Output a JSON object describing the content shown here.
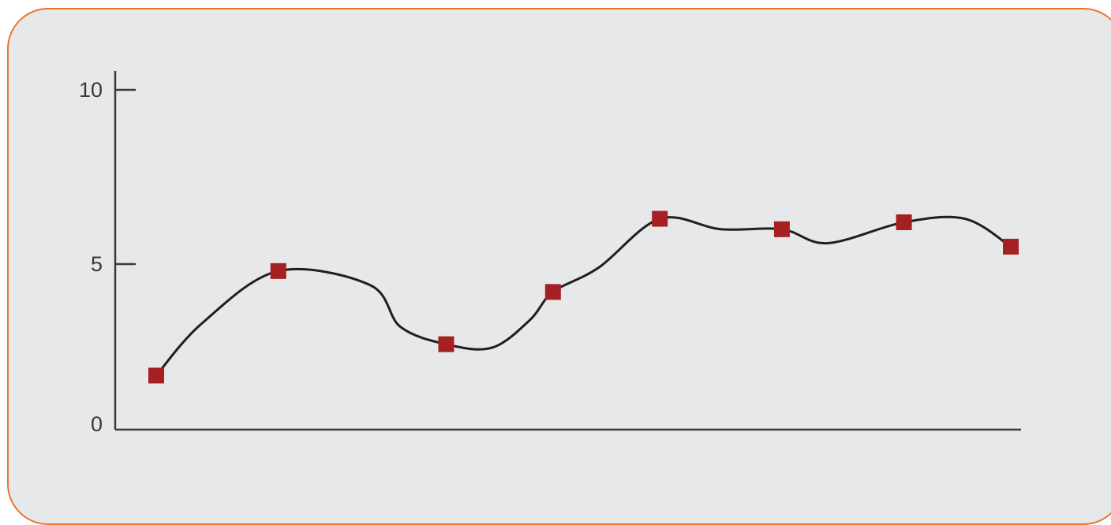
{
  "chart_data": {
    "type": "line",
    "title": "",
    "xlabel": "",
    "ylabel": "",
    "ylim": [
      0,
      10
    ],
    "yticks": [
      0,
      5,
      10
    ],
    "ytick_labels": [
      "0",
      "5",
      "10"
    ],
    "grid": false,
    "legend": "none",
    "smooth": true,
    "line_color": "#1f1f1f",
    "marker": "square",
    "marker_color": "#a61f23",
    "axis_color": "#3a3a3a",
    "card_background": "#e7e8ea",
    "card_border_color": "#e87530",
    "series": [
      {
        "x": [
          1,
          2.6,
          4.8,
          6.2,
          7.6,
          9.2,
          10.8,
          12.2
        ],
        "values": [
          1.8,
          4.8,
          2.7,
          4.2,
          6.3,
          6.0,
          6.2,
          5.5
        ]
      }
    ],
    "guide_points": [
      {
        "x": 1.6,
        "value": 3.3
      },
      {
        "x": 3.8,
        "value": 4.4
      },
      {
        "x": 4.2,
        "value": 3.2
      },
      {
        "x": 5.4,
        "value": 2.6
      },
      {
        "x": 5.9,
        "value": 3.4
      },
      {
        "x": 6.8,
        "value": 4.9
      },
      {
        "x": 8.4,
        "value": 6.0
      },
      {
        "x": 9.8,
        "value": 5.6
      },
      {
        "x": 11.6,
        "value": 6.3
      }
    ],
    "xlim": [
      0,
      12.2
    ]
  }
}
